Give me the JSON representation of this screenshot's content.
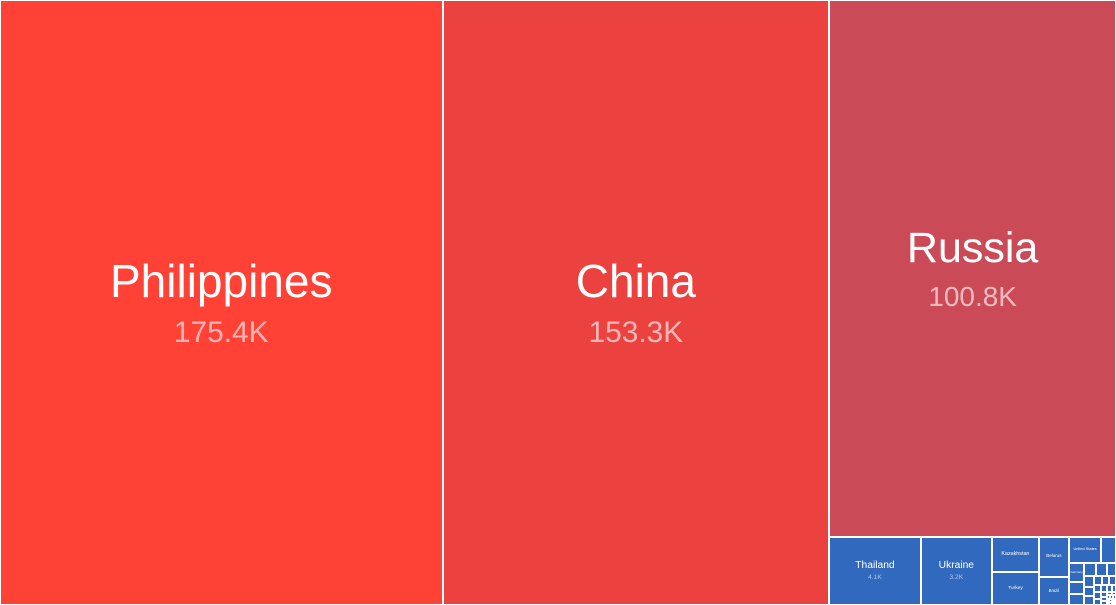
{
  "chart_data": {
    "type": "treemap",
    "title": "",
    "items": [
      {
        "name": "Philippines",
        "value_label": "175.4K",
        "value": 175400,
        "color": "#ff4136"
      },
      {
        "name": "China",
        "value_label": "153.3K",
        "value": 153300,
        "color": "#ec423f"
      },
      {
        "name": "Russia",
        "value_label": "100.8K",
        "value": 100800,
        "color": "#cb4a57"
      },
      {
        "name": "Thailand",
        "value_label": "4.1K",
        "value": 4100,
        "color": "#3069bd"
      },
      {
        "name": "Ukraine",
        "value_label": "3.2K",
        "value": 3200,
        "color": "#3069bd"
      },
      {
        "name": "Kazakhstan",
        "value_label": "",
        "value": 1100,
        "color": "#3069bd"
      },
      {
        "name": "Turkey",
        "value_label": "",
        "value": 1000,
        "color": "#3069bd"
      },
      {
        "name": "Belarus",
        "value_label": "",
        "value": 800,
        "color": "#3069bd"
      },
      {
        "name": "Brazil",
        "value_label": "",
        "value": 550,
        "color": "#3069bd"
      },
      {
        "name": "United States",
        "value_label": "",
        "value": 550,
        "color": "#3069bd"
      },
      {
        "name": "",
        "value_label": "",
        "value": 250,
        "color": "#3069bd"
      },
      {
        "name": "Germany",
        "value_label": "",
        "value": 200,
        "color": "#3069bd"
      },
      {
        "name": "",
        "value_label": "",
        "value": 120,
        "color": "#3069bd"
      },
      {
        "name": "",
        "value_label": "",
        "value": 110,
        "color": "#3069bd"
      },
      {
        "name": "",
        "value_label": "",
        "value": 100,
        "color": "#3069bd"
      },
      {
        "name": "",
        "value_label": "",
        "value": 90,
        "color": "#3069bd"
      },
      {
        "name": "",
        "value_label": "",
        "value": 80,
        "color": "#3069bd"
      },
      {
        "name": "",
        "value_label": "",
        "value": 70,
        "color": "#3069bd"
      },
      {
        "name": "",
        "value_label": "",
        "value": 60,
        "color": "#3069bd"
      },
      {
        "name": "",
        "value_label": "",
        "value": 55,
        "color": "#3069bd"
      },
      {
        "name": "",
        "value_label": "",
        "value": 50,
        "color": "#3069bd"
      },
      {
        "name": "",
        "value_label": "",
        "value": 45,
        "color": "#3069bd"
      },
      {
        "name": "",
        "value_label": "",
        "value": 40,
        "color": "#3069bd"
      },
      {
        "name": "",
        "value_label": "",
        "value": 35,
        "color": "#3069bd"
      },
      {
        "name": "",
        "value_label": "",
        "value": 30,
        "color": "#3069bd"
      },
      {
        "name": "",
        "value_label": "",
        "value": 28,
        "color": "#3069bd"
      },
      {
        "name": "",
        "value_label": "",
        "value": 25,
        "color": "#3069bd"
      },
      {
        "name": "",
        "value_label": "",
        "value": 22,
        "color": "#3069bd"
      },
      {
        "name": "",
        "value_label": "",
        "value": 20,
        "color": "#3069bd"
      },
      {
        "name": "",
        "value_label": "",
        "value": 18,
        "color": "#3069bd"
      },
      {
        "name": "",
        "value_label": "",
        "value": 16,
        "color": "#3069bd"
      },
      {
        "name": "",
        "value_label": "",
        "value": 14,
        "color": "#3069bd"
      },
      {
        "name": "",
        "value_label": "",
        "value": 12,
        "color": "#3069bd"
      },
      {
        "name": "",
        "value_label": "",
        "value": 10,
        "color": "#3069bd"
      },
      {
        "name": "",
        "value_label": "",
        "value": 9,
        "color": "#3069bd"
      },
      {
        "name": "",
        "value_label": "",
        "value": 8,
        "color": "#3069bd"
      },
      {
        "name": "",
        "value_label": "",
        "value": 7,
        "color": "#3069bd"
      },
      {
        "name": "",
        "value_label": "",
        "value": 6,
        "color": "#3069bd"
      },
      {
        "name": "",
        "value_label": "",
        "value": 5,
        "color": "#3069bd"
      },
      {
        "name": "",
        "value_label": "",
        "value": 5,
        "color": "#3069bd"
      },
      {
        "name": "",
        "value_label": "",
        "value": 4,
        "color": "#3069bd"
      },
      {
        "name": "",
        "value_label": "",
        "value": 4,
        "color": "#3069bd"
      },
      {
        "name": "",
        "value_label": "",
        "value": 3,
        "color": "#3069bd"
      },
      {
        "name": "",
        "value_label": "",
        "value": 3,
        "color": "#3069bd"
      },
      {
        "name": "",
        "value_label": "",
        "value": 2,
        "color": "#3069bd"
      },
      {
        "name": "",
        "value_label": "",
        "value": 2,
        "color": "#3069bd"
      },
      {
        "name": "",
        "value_label": "",
        "value": 1,
        "color": "#3069bd"
      },
      {
        "name": "",
        "value_label": "",
        "value": 1,
        "color": "#3069bd"
      }
    ]
  }
}
